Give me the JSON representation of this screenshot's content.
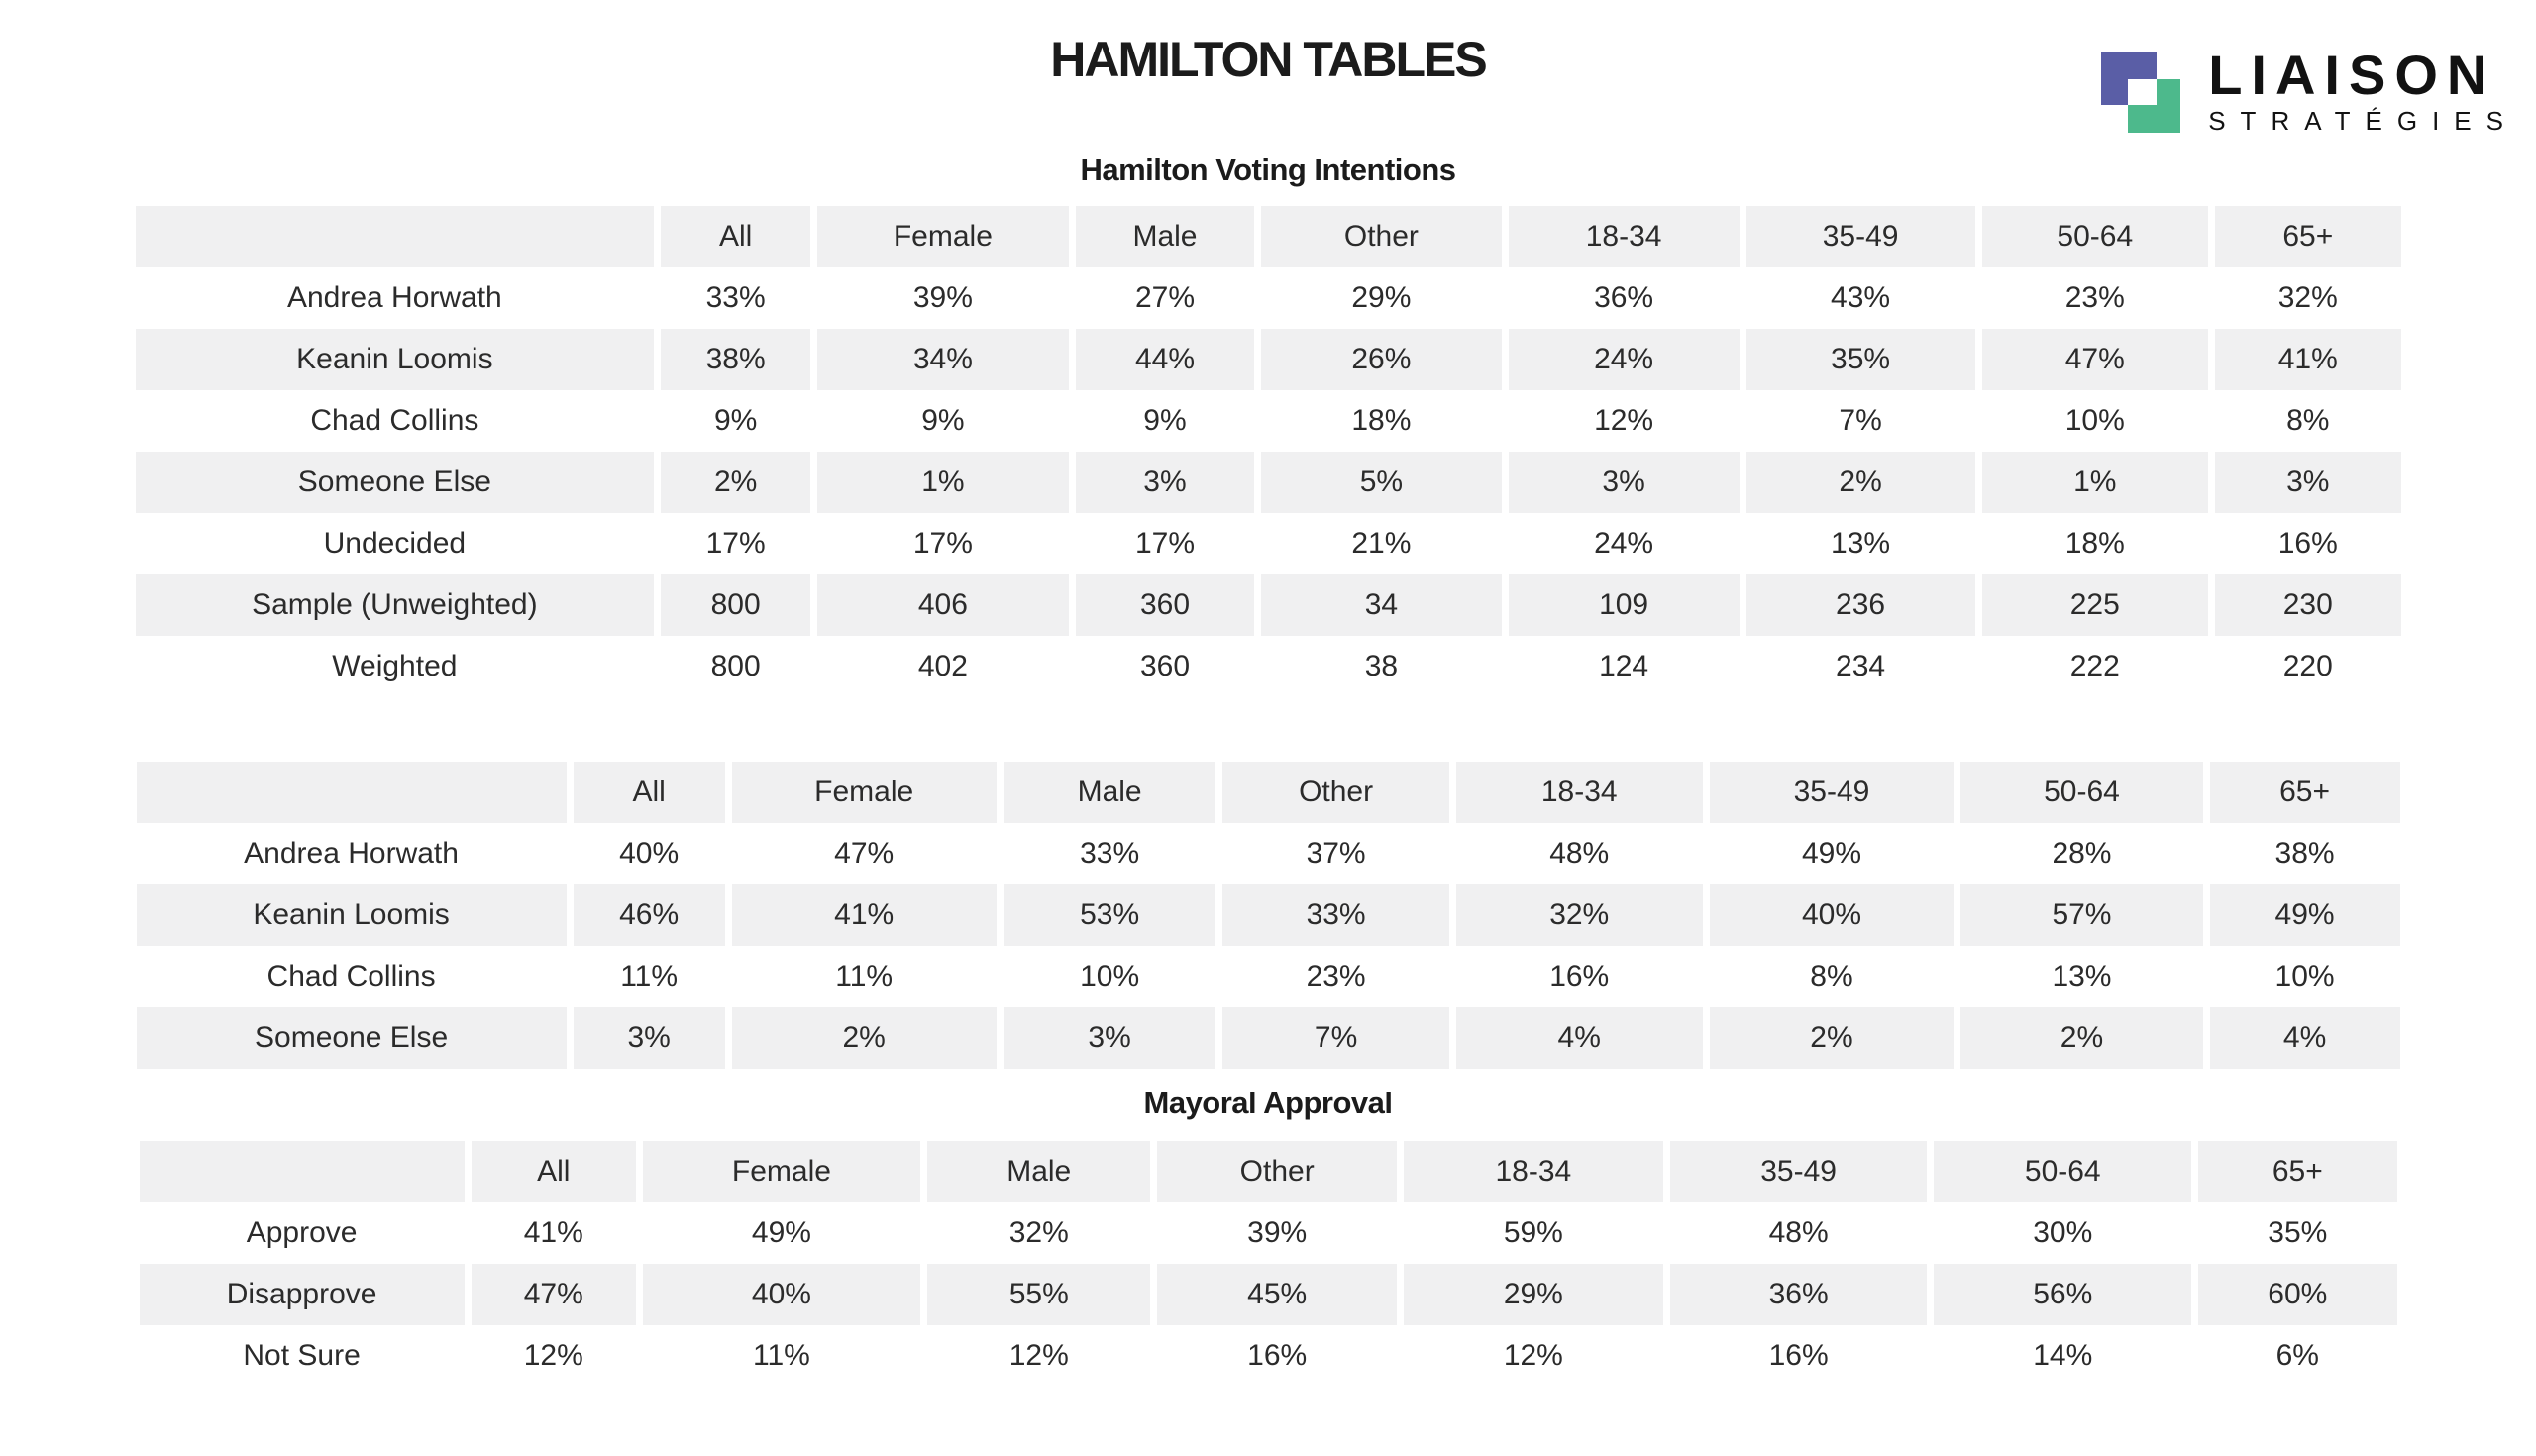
{
  "page": {
    "title": "HAMILTON TABLES"
  },
  "logo": {
    "name": "LIAISON",
    "subtitle": "STRATÉGIES",
    "colors": {
      "purple": "#5a5ea6",
      "green": "#4db98c",
      "text": "#121212"
    }
  },
  "stripe_color": "#f0f0f1",
  "tables": [
    {
      "title": "Hamilton Voting Intentions",
      "columns": [
        "",
        "All",
        "Female",
        "Male",
        "Other",
        "18-34",
        "35-49",
        "50-64",
        "65+"
      ],
      "rows": [
        {
          "label": "Andrea Horwath",
          "values": [
            "33%",
            "39%",
            "27%",
            "29%",
            "36%",
            "43%",
            "23%",
            "32%"
          ]
        },
        {
          "label": "Keanin Loomis",
          "values": [
            "38%",
            "34%",
            "44%",
            "26%",
            "24%",
            "35%",
            "47%",
            "41%"
          ]
        },
        {
          "label": "Chad Collins",
          "values": [
            "9%",
            "9%",
            "9%",
            "18%",
            "12%",
            "7%",
            "10%",
            "8%"
          ]
        },
        {
          "label": "Someone Else",
          "values": [
            "2%",
            "1%",
            "3%",
            "5%",
            "3%",
            "2%",
            "1%",
            "3%"
          ]
        },
        {
          "label": "Undecided",
          "values": [
            "17%",
            "17%",
            "17%",
            "21%",
            "24%",
            "13%",
            "18%",
            "16%"
          ]
        },
        {
          "label": "Sample (Unweighted)",
          "values": [
            "800",
            "406",
            "360",
            "34",
            "109",
            "236",
            "225",
            "230"
          ]
        },
        {
          "label": "Weighted",
          "values": [
            "800",
            "402",
            "360",
            "38",
            "124",
            "234",
            "222",
            "220"
          ]
        }
      ]
    },
    {
      "title": "",
      "columns": [
        "",
        "All",
        "Female",
        "Male",
        "Other",
        "18-34",
        "35-49",
        "50-64",
        "65+"
      ],
      "rows": [
        {
          "label": "Andrea Horwath",
          "values": [
            "40%",
            "47%",
            "33%",
            "37%",
            "48%",
            "49%",
            "28%",
            "38%"
          ]
        },
        {
          "label": "Keanin Loomis",
          "values": [
            "46%",
            "41%",
            "53%",
            "33%",
            "32%",
            "40%",
            "57%",
            "49%"
          ]
        },
        {
          "label": "Chad Collins",
          "values": [
            "11%",
            "11%",
            "10%",
            "23%",
            "16%",
            "8%",
            "13%",
            "10%"
          ]
        },
        {
          "label": "Someone Else",
          "values": [
            "3%",
            "2%",
            "3%",
            "7%",
            "4%",
            "2%",
            "2%",
            "4%"
          ]
        }
      ]
    },
    {
      "title": "Mayoral Approval",
      "columns": [
        "",
        "All",
        "Female",
        "Male",
        "Other",
        "18-34",
        "35-49",
        "50-64",
        "65+"
      ],
      "rows": [
        {
          "label": "Approve",
          "values": [
            "41%",
            "49%",
            "32%",
            "39%",
            "59%",
            "48%",
            "30%",
            "35%"
          ]
        },
        {
          "label": "Disapprove",
          "values": [
            "47%",
            "40%",
            "55%",
            "45%",
            "29%",
            "36%",
            "56%",
            "60%"
          ]
        },
        {
          "label": "Not Sure",
          "values": [
            "12%",
            "11%",
            "12%",
            "16%",
            "12%",
            "16%",
            "14%",
            "6%"
          ]
        }
      ]
    }
  ]
}
